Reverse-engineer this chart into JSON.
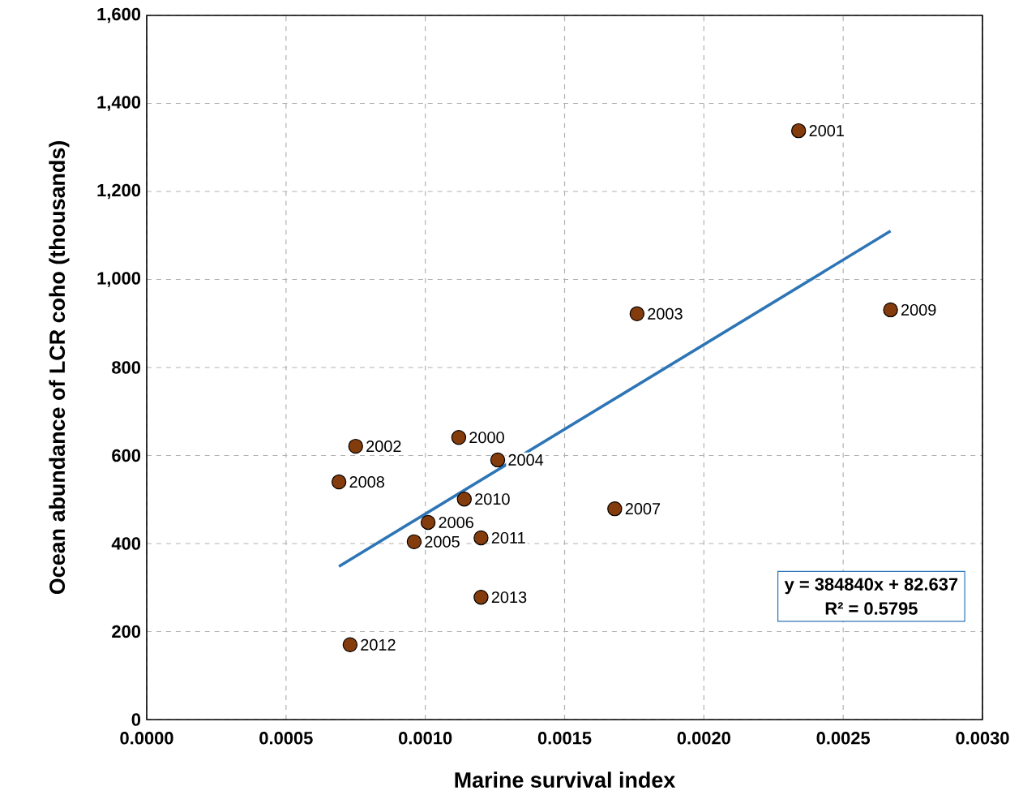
{
  "chart_data": {
    "type": "scatter",
    "xlabel": "Marine survival index",
    "ylabel": "Ocean abundance of LCR coho (thousands)",
    "xlim": [
      0,
      0.003
    ],
    "ylim": [
      0,
      1600
    ],
    "xticks": [
      {
        "value": 0,
        "label": "0.0000"
      },
      {
        "value": 0.0005,
        "label": "0.0005"
      },
      {
        "value": 0.001,
        "label": "0.0010"
      },
      {
        "value": 0.0015,
        "label": "0.0015"
      },
      {
        "value": 0.002,
        "label": "0.0020"
      },
      {
        "value": 0.0025,
        "label": "0.0025"
      },
      {
        "value": 0.003,
        "label": "0.0030"
      }
    ],
    "yticks": [
      0,
      {
        "value": 200,
        "label": "200"
      },
      {
        "value": 400,
        "label": "400"
      },
      {
        "value": 600,
        "label": "600"
      },
      {
        "value": 800,
        "label": "800"
      },
      {
        "value": 1000,
        "label": "1,000"
      },
      {
        "value": 1200,
        "label": "1,200"
      },
      {
        "value": 1400,
        "label": "1,400"
      },
      {
        "value": 1600,
        "label": "1,600"
      }
    ],
    "grid": true,
    "marker": "circle",
    "series": [
      {
        "color": "#843c0c",
        "x": [
          0.00234,
          0.00176,
          0.00267,
          0.00112,
          0.00075,
          0.00126,
          0.00069,
          0.00114,
          0.00168,
          0.00101,
          0.00096,
          0.0012,
          0.0012,
          0.00073
        ],
        "values": [
          1338,
          922,
          931,
          641,
          621,
          590,
          540,
          501,
          479,
          448,
          404,
          413,
          278,
          170
        ]
      },
      {
        "type": "line",
        "color": "#2e75b6",
        "x": [
          0.00069,
          0.00267
        ],
        "values": [
          348,
          1110
        ],
        "marker": "none"
      }
    ],
    "annotations": [
      {
        "text": "2001",
        "x": 0.00234,
        "y": 1338
      },
      {
        "text": "2003",
        "x": 0.00176,
        "y": 922
      },
      {
        "text": "2009",
        "x": 0.00267,
        "y": 931
      },
      {
        "text": "2000",
        "x": 0.00112,
        "y": 641
      },
      {
        "text": "2002",
        "x": 0.00075,
        "y": 621
      },
      {
        "text": "2004",
        "x": 0.00126,
        "y": 590
      },
      {
        "text": "2008",
        "x": 0.00069,
        "y": 540
      },
      {
        "text": "2010",
        "x": 0.00114,
        "y": 501
      },
      {
        "text": "2007",
        "x": 0.00168,
        "y": 479
      },
      {
        "text": "2006",
        "x": 0.00101,
        "y": 448
      },
      {
        "text": "2005",
        "x": 0.00096,
        "y": 404
      },
      {
        "text": "2011",
        "x": 0.0012,
        "y": 413
      },
      {
        "text": "2013",
        "x": 0.0012,
        "y": 278
      },
      {
        "text": "2012",
        "x": 0.00073,
        "y": 170
      },
      "y = 384840x + 82.637",
      "R² = 0.5795"
    ]
  }
}
